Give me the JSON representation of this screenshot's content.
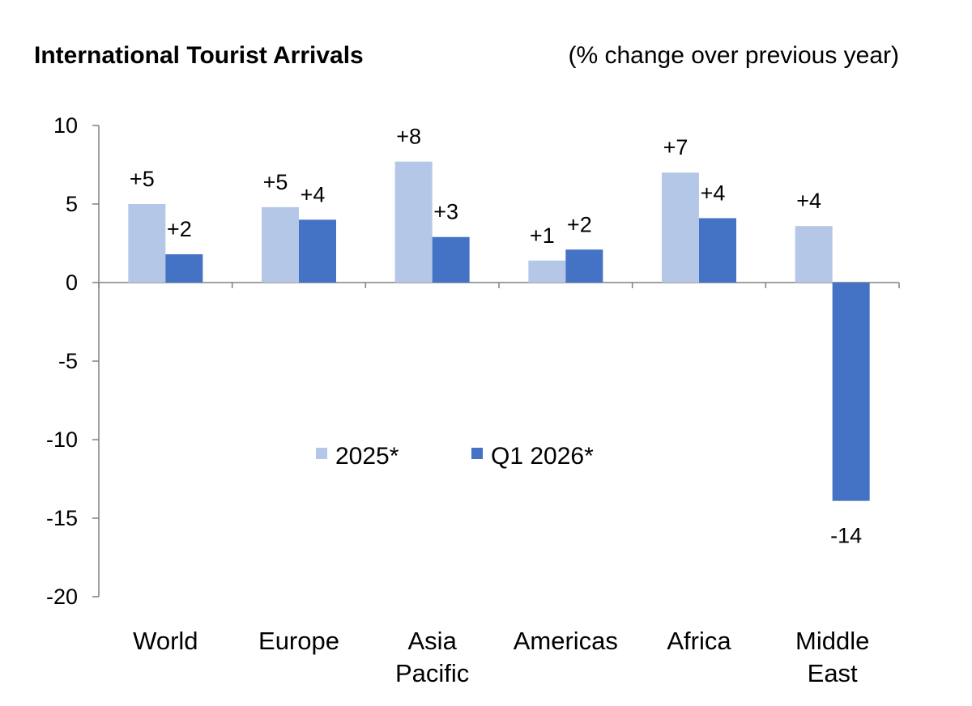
{
  "chart_data": {
    "type": "bar",
    "title": "International Tourist Arrivals",
    "subtitle": "(% change over previous year)",
    "categories": [
      [
        "World"
      ],
      [
        "Europe"
      ],
      [
        "Asia",
        "Pacific"
      ],
      [
        "Americas"
      ],
      [
        "Africa"
      ],
      [
        "Middle",
        "East"
      ]
    ],
    "series": [
      {
        "name": "2025*",
        "color": "#b4c7e7",
        "values": [
          5,
          4.8,
          7.7,
          1.4,
          7,
          3.6
        ],
        "labels": [
          "+5",
          "+5",
          "+8",
          "+1",
          "+7",
          "+4"
        ]
      },
      {
        "name": "Q1 2026*",
        "color": "#4472c4",
        "values": [
          1.8,
          4,
          2.9,
          2.1,
          4.1,
          -13.9
        ],
        "labels": [
          "+2",
          "+4",
          "+3",
          "+2",
          "+4",
          "-14"
        ]
      }
    ],
    "ylim": [
      -20,
      10
    ],
    "yticks": [
      10,
      5,
      0,
      -5,
      -10,
      -15,
      -20
    ],
    "grid": false,
    "legend_position": "center"
  }
}
